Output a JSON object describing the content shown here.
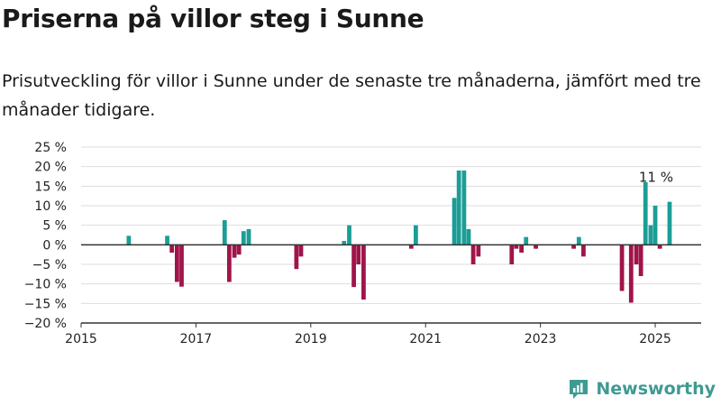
{
  "header": {
    "title": "Priserna på villor steg i Sunne",
    "subtitle": "Prisutveckling för villor i Sunne under de senaste tre månaderna, jämfört med tre månader tidigare."
  },
  "brand": {
    "name": "Newsworthy",
    "icon": "newsworthy-logo-icon"
  },
  "colors": {
    "positive": "#1a9e96",
    "negative": "#a0144a",
    "grid": "#dddddd",
    "axis": "#333333"
  },
  "chart_data": {
    "type": "bar",
    "title": "",
    "xlabel": "",
    "ylabel": "",
    "ylim": [
      -20,
      25
    ],
    "xlim": [
      2015.0,
      2025.8
    ],
    "y_ticks": [
      25,
      20,
      15,
      10,
      5,
      0,
      -5,
      -10,
      -15,
      -20
    ],
    "y_tick_labels": [
      "25 %",
      "20 %",
      "15 %",
      "10 %",
      "5 %",
      "0 %",
      "−5 %",
      "−10 %",
      "−15 %",
      "−20 %"
    ],
    "x_ticks": [
      2015,
      2017,
      2019,
      2021,
      2023,
      2025
    ],
    "x_tick_labels": [
      "2015",
      "2017",
      "2019",
      "2021",
      "2023",
      "2025"
    ],
    "grid": "horizontal",
    "annotation": {
      "text": "11 %",
      "x": 2025.25,
      "y": 11
    },
    "x": [
      2015.83,
      2016.5,
      2016.58,
      2016.67,
      2016.75,
      2017.5,
      2017.58,
      2017.67,
      2017.75,
      2017.83,
      2017.92,
      2018.75,
      2018.83,
      2019.58,
      2019.67,
      2019.75,
      2019.83,
      2019.92,
      2020.75,
      2020.83,
      2021.5,
      2021.58,
      2021.67,
      2021.75,
      2021.83,
      2021.92,
      2022.5,
      2022.58,
      2022.67,
      2022.75,
      2022.92,
      2023.58,
      2023.67,
      2023.75,
      2024.42,
      2024.58,
      2024.67,
      2024.75,
      2024.83,
      2024.92,
      2025.0,
      2025.08,
      2025.25
    ],
    "values": [
      2.3,
      2.3,
      -2,
      -9.5,
      -10.7,
      6.3,
      -9.5,
      -3.3,
      -2.5,
      3.5,
      4,
      -6.2,
      -3,
      1,
      5,
      -10.8,
      -5,
      -14,
      -1,
      5,
      12,
      19,
      19,
      4,
      -5,
      -3,
      -5,
      -1,
      -2,
      2,
      -1,
      -1,
      2,
      -3,
      -11.8,
      -14.8,
      -5,
      -8,
      16,
      5,
      10,
      -1,
      11
    ]
  }
}
